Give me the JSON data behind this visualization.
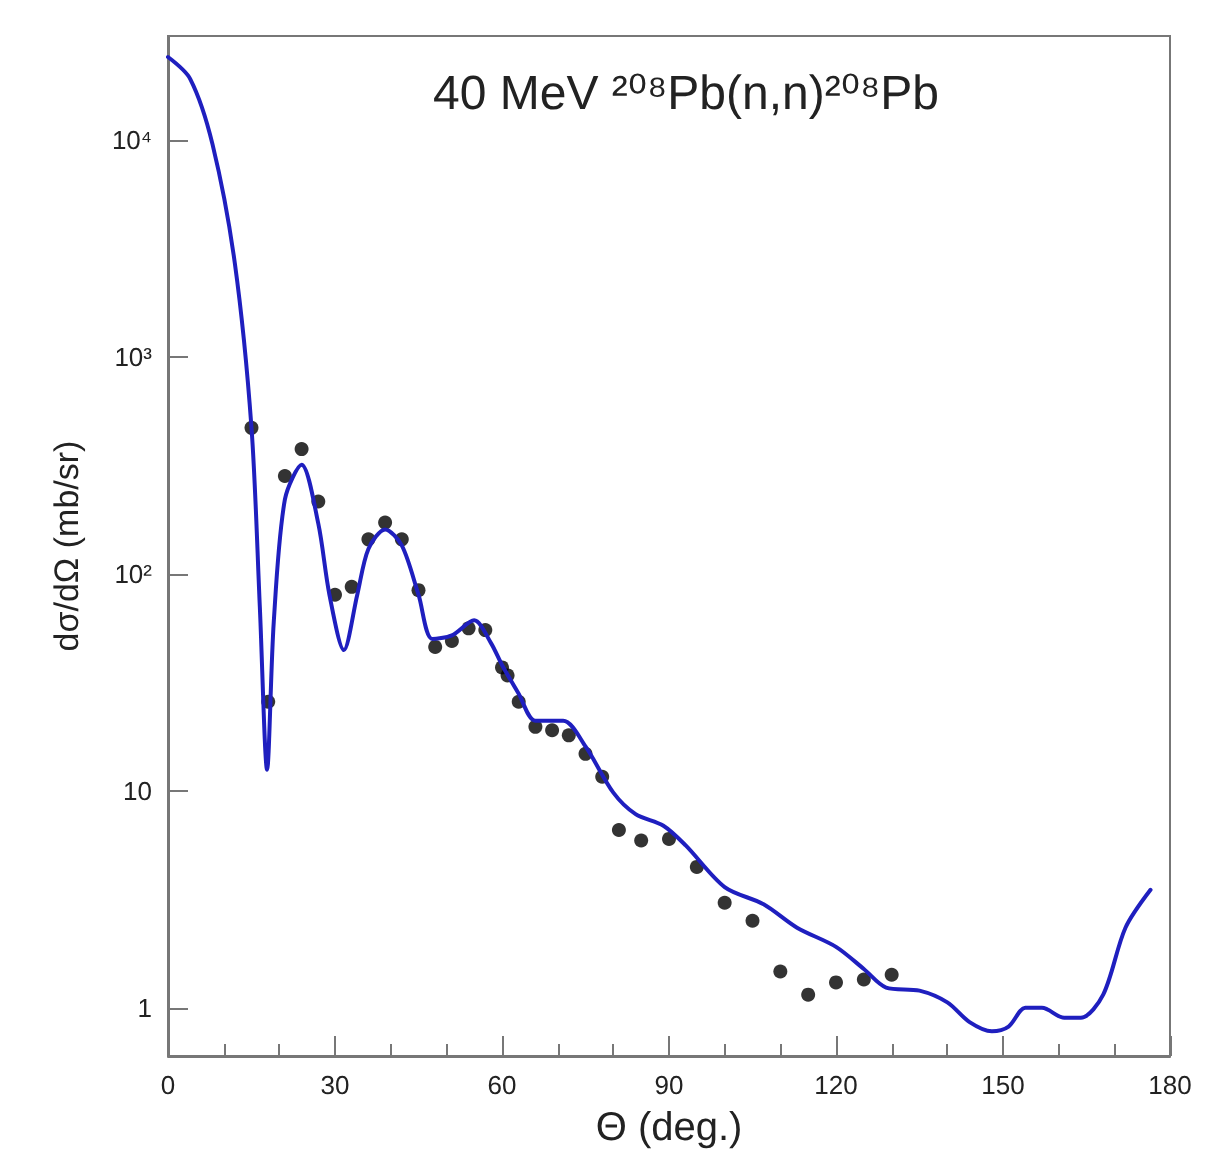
{
  "chart_data": {
    "type": "line",
    "title": "40 MeV ²⁰⁸Pb(n,n)²⁰⁸Pb",
    "xlabel": "Θ (deg.)",
    "ylabel": "dσ/dΩ (mb/sr)",
    "log": "y",
    "xlim": [
      0,
      180
    ],
    "ylim": [
      0.6,
      30000
    ],
    "xticks": [
      0,
      30,
      60,
      90,
      120,
      150,
      180
    ],
    "yticks": [
      1,
      10,
      {
        "value": 100,
        "label": "10²"
      },
      {
        "value": 1000,
        "label": "10³"
      },
      {
        "value": 10000,
        "label": "10⁴"
      }
    ],
    "grid": false,
    "series": [
      {
        "type": "line",
        "color": "#1f1fbf",
        "line_style": "solid",
        "marker": "none",
        "x": [
          0,
          4,
          8,
          12,
          15,
          16.5,
          17.8,
          19,
          21,
          24,
          27,
          29,
          31.6,
          34,
          36,
          39,
          42,
          45,
          47.5,
          51,
          55,
          58,
          60,
          63,
          66,
          71,
          75,
          80,
          84,
          89,
          93,
          100,
          107,
          113,
          120,
          125,
          129,
          135,
          140,
          144,
          148,
          151,
          154,
          157,
          161,
          164,
          168,
          172,
          176.5
        ],
        "values": [
          24000,
          19000,
          9500,
          2700,
          470,
          70,
          12.5,
          60,
          220,
          318,
          170,
          80,
          44.5,
          80,
          130,
          160,
          135,
          80,
          50,
          52,
          61,
          48,
          38,
          28,
          21,
          21,
          16,
          9.8,
          7.8,
          6.9,
          5.6,
          3.6,
          3.0,
          2.34,
          1.91,
          1.51,
          1.24,
          1.2,
          1.06,
          0.86,
          0.78,
          0.82,
          1.0,
          1.0,
          0.9,
          0.9,
          1.15,
          2.34,
          3.5
        ]
      },
      {
        "type": "scatter",
        "color": "#000000",
        "marker": "circle",
        "x": [
          15,
          18,
          21,
          24,
          27,
          30,
          33,
          36,
          39,
          42,
          45,
          48,
          51,
          54,
          57,
          60,
          61,
          63,
          66,
          69,
          72,
          75,
          78,
          81,
          85,
          90,
          95,
          100,
          105,
          110,
          115,
          120,
          125,
          130
        ],
        "values": [
          470,
          25.7,
          282,
          375,
          215,
          80,
          87,
          144,
          172,
          144,
          84,
          46,
          49,
          56,
          55,
          37,
          34,
          25.7,
          19.7,
          19,
          18,
          14.8,
          11.6,
          6.6,
          5.9,
          6.0,
          4.46,
          3.05,
          2.52,
          1.47,
          1.15,
          1.31,
          1.35,
          1.42
        ]
      }
    ]
  }
}
